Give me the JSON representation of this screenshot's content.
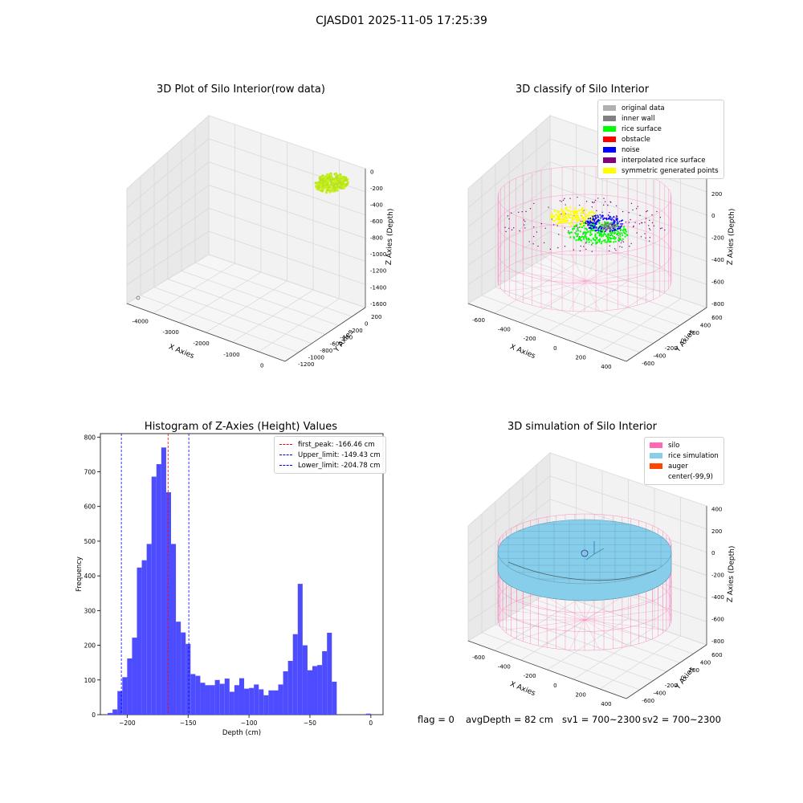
{
  "figure": {
    "suptitle": "CJASD01 2025-11-05 17:25:39",
    "status": {
      "flag": "flag = 0",
      "avg_depth": "avgDepth = 82 cm",
      "sv1": "sv1 = 700~2300",
      "sv2": "sv2 = 700~2300"
    }
  },
  "chart_data": [
    {
      "type": "scatter",
      "projection": "3d",
      "title": "3D Plot of Silo Interior(row data)",
      "xlabel": "X Axies",
      "ylabel": "Y Axies",
      "zlabel": "Z Axies (Depth)",
      "x_ticks": [
        "-4000",
        "-3000",
        "-2000",
        "-1000",
        "0"
      ],
      "y_ticks": [
        "200",
        "0",
        "-200",
        "-400",
        "-600",
        "-800",
        "-1000",
        "-1200"
      ],
      "z_ticks": [
        "0",
        "-200",
        "-400",
        "-600",
        "-800",
        "-1000",
        "-1200",
        "-1400",
        "-1600"
      ],
      "colors": {
        "points": "#b5e61d",
        "outlier": "#888888"
      },
      "grid": true
    },
    {
      "type": "scatter",
      "projection": "3d",
      "title": "3D classify of Silo Interior",
      "xlabel": "X Axies",
      "ylabel": "Y Axies",
      "zlabel": "Z Axies (Depth)",
      "x_ticks": [
        "-600",
        "-400",
        "-200",
        "0",
        "200",
        "400"
      ],
      "y_ticks": [
        "600",
        "400",
        "200",
        "0",
        "-200",
        "-400",
        "-600"
      ],
      "z_ticks": [
        "400",
        "200",
        "0",
        "-200",
        "-400",
        "-600",
        "-800"
      ],
      "legend": [
        {
          "name": "original data",
          "color": "#b0b0b0"
        },
        {
          "name": "inner wall",
          "color": "#808080"
        },
        {
          "name": "rice surface",
          "color": "#00ff00"
        },
        {
          "name": "obstacle",
          "color": "#ff0000"
        },
        {
          "name": "noise",
          "color": "#0000ff"
        },
        {
          "name": "interpolated rice surface",
          "color": "#800080"
        },
        {
          "name": "symmetric generated points",
          "color": "#ffff00"
        }
      ],
      "legend_loc": "upper right",
      "grid": true
    },
    {
      "type": "histogram",
      "title": "Histogram of Z-Axies (Height) Values",
      "xlabel": "Depth (cm)",
      "ylabel": "Frequency",
      "xlim": [
        -222,
        10
      ],
      "ylim": [
        0,
        810
      ],
      "bin_width": 4,
      "x_ticks": [
        -200,
        -150,
        -100,
        -50,
        0
      ],
      "y_ticks": [
        0,
        100,
        200,
        300,
        400,
        500,
        600,
        700,
        800
      ],
      "bar_color": "#4d4dff",
      "bins": [
        {
          "x": -214,
          "y": 5
        },
        {
          "x": -210,
          "y": 15
        },
        {
          "x": -206,
          "y": 68
        },
        {
          "x": -202,
          "y": 108
        },
        {
          "x": -198,
          "y": 162
        },
        {
          "x": -194,
          "y": 222
        },
        {
          "x": -190,
          "y": 424
        },
        {
          "x": -186,
          "y": 445
        },
        {
          "x": -182,
          "y": 492
        },
        {
          "x": -178,
          "y": 686
        },
        {
          "x": -174,
          "y": 722
        },
        {
          "x": -170,
          "y": 770
        },
        {
          "x": -166,
          "y": 641
        },
        {
          "x": -162,
          "y": 492
        },
        {
          "x": -158,
          "y": 268
        },
        {
          "x": -154,
          "y": 237
        },
        {
          "x": -150,
          "y": 204
        },
        {
          "x": -146,
          "y": 117
        },
        {
          "x": -142,
          "y": 112
        },
        {
          "x": -138,
          "y": 92
        },
        {
          "x": -134,
          "y": 85
        },
        {
          "x": -130,
          "y": 85
        },
        {
          "x": -126,
          "y": 100
        },
        {
          "x": -122,
          "y": 89
        },
        {
          "x": -118,
          "y": 104
        },
        {
          "x": -114,
          "y": 66
        },
        {
          "x": -110,
          "y": 85
        },
        {
          "x": -106,
          "y": 105
        },
        {
          "x": -102,
          "y": 75
        },
        {
          "x": -98,
          "y": 77
        },
        {
          "x": -94,
          "y": 87
        },
        {
          "x": -90,
          "y": 73
        },
        {
          "x": -86,
          "y": 56
        },
        {
          "x": -82,
          "y": 70
        },
        {
          "x": -78,
          "y": 70
        },
        {
          "x": -74,
          "y": 87
        },
        {
          "x": -70,
          "y": 125
        },
        {
          "x": -66,
          "y": 155
        },
        {
          "x": -62,
          "y": 232
        },
        {
          "x": -58,
          "y": 377
        },
        {
          "x": -54,
          "y": 200
        },
        {
          "x": -50,
          "y": 128
        },
        {
          "x": -46,
          "y": 140
        },
        {
          "x": -42,
          "y": 143
        },
        {
          "x": -38,
          "y": 183
        },
        {
          "x": -34,
          "y": 236
        },
        {
          "x": -30,
          "y": 95
        },
        {
          "x": -26,
          "y": 0
        },
        {
          "x": -22,
          "y": 0
        },
        {
          "x": -18,
          "y": 0
        },
        {
          "x": -14,
          "y": 0
        },
        {
          "x": -10,
          "y": 0
        },
        {
          "x": -6,
          "y": 0
        },
        {
          "x": -2,
          "y": 3
        }
      ],
      "vlines": [
        {
          "label": "first_peak: -166.46 cm",
          "x": -166.46,
          "color": "#ff0000"
        },
        {
          "label": "Upper_limit: -149.43 cm",
          "x": -149.43,
          "color": "#0000ff"
        },
        {
          "label": "Lower_limit: -204.78 cm",
          "x": -204.78,
          "color": "#0000ff"
        }
      ],
      "legend_loc": "upper right"
    },
    {
      "type": "surface",
      "projection": "3d",
      "title": "3D simulation of Silo Interior",
      "xlabel": "X Axies",
      "ylabel": "Y Axies",
      "zlabel": "Z Axies (Depth)",
      "x_ticks": [
        "-600",
        "-400",
        "-200",
        "0",
        "200",
        "400"
      ],
      "y_ticks": [
        "600",
        "400",
        "200",
        "0",
        "-200",
        "-400",
        "-600"
      ],
      "z_ticks": [
        "400",
        "200",
        "0",
        "-200",
        "-400",
        "-600",
        "-800"
      ],
      "legend": [
        {
          "name": "silo",
          "color": "#ff69b4"
        },
        {
          "name": "rice simulation",
          "color": "#87ceeb"
        },
        {
          "name": "auger",
          "color": "#ff4500"
        },
        {
          "name": "center(-99,9)",
          "color": "#ffffff"
        }
      ],
      "legend_loc": "upper right",
      "grid": true
    }
  ]
}
